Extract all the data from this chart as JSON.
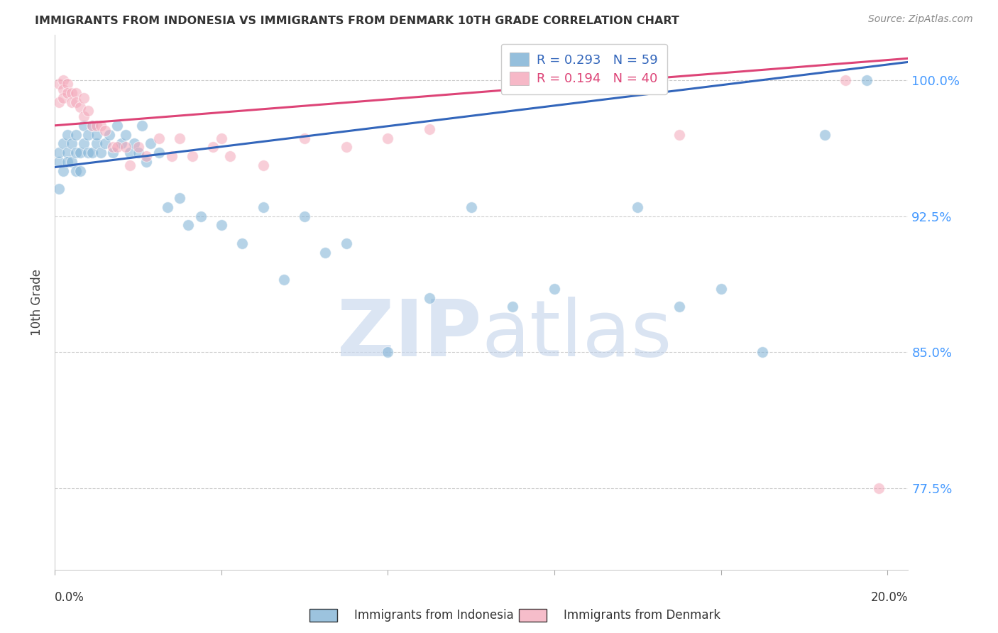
{
  "title": "IMMIGRANTS FROM INDONESIA VS IMMIGRANTS FROM DENMARK 10TH GRADE CORRELATION CHART",
  "source": "Source: ZipAtlas.com",
  "ylabel": "10th Grade",
  "yticks": [
    0.775,
    0.85,
    0.925,
    1.0
  ],
  "ytick_labels": [
    "77.5%",
    "85.0%",
    "92.5%",
    "100.0%"
  ],
  "xmin": 0.0,
  "xmax": 0.205,
  "ymin": 0.73,
  "ymax": 1.025,
  "indonesia_R": 0.293,
  "indonesia_N": 59,
  "denmark_R": 0.194,
  "denmark_N": 40,
  "indonesia_color": "#7BAFD4",
  "denmark_color": "#F4A7B9",
  "indonesia_line_color": "#3366BB",
  "denmark_line_color": "#DD4477",
  "indonesia_x": [
    0.001,
    0.001,
    0.001,
    0.002,
    0.002,
    0.003,
    0.003,
    0.003,
    0.004,
    0.004,
    0.005,
    0.005,
    0.005,
    0.006,
    0.006,
    0.007,
    0.007,
    0.008,
    0.008,
    0.009,
    0.009,
    0.01,
    0.01,
    0.011,
    0.012,
    0.013,
    0.014,
    0.015,
    0.016,
    0.017,
    0.018,
    0.019,
    0.02,
    0.021,
    0.022,
    0.023,
    0.025,
    0.027,
    0.03,
    0.032,
    0.035,
    0.04,
    0.045,
    0.05,
    0.055,
    0.06,
    0.065,
    0.07,
    0.08,
    0.09,
    0.1,
    0.11,
    0.12,
    0.14,
    0.15,
    0.16,
    0.17,
    0.185,
    0.195
  ],
  "indonesia_y": [
    0.955,
    0.94,
    0.96,
    0.95,
    0.965,
    0.96,
    0.955,
    0.97,
    0.955,
    0.965,
    0.96,
    0.95,
    0.97,
    0.96,
    0.95,
    0.965,
    0.975,
    0.96,
    0.97,
    0.96,
    0.975,
    0.965,
    0.97,
    0.96,
    0.965,
    0.97,
    0.96,
    0.975,
    0.965,
    0.97,
    0.96,
    0.965,
    0.96,
    0.975,
    0.955,
    0.965,
    0.96,
    0.93,
    0.935,
    0.92,
    0.925,
    0.92,
    0.91,
    0.93,
    0.89,
    0.925,
    0.905,
    0.91,
    0.85,
    0.88,
    0.93,
    0.875,
    0.885,
    0.93,
    0.875,
    0.885,
    0.85,
    0.97,
    1.0
  ],
  "denmark_x": [
    0.001,
    0.001,
    0.002,
    0.002,
    0.002,
    0.003,
    0.003,
    0.004,
    0.004,
    0.005,
    0.005,
    0.006,
    0.007,
    0.007,
    0.008,
    0.009,
    0.01,
    0.011,
    0.012,
    0.014,
    0.015,
    0.017,
    0.018,
    0.02,
    0.022,
    0.025,
    0.028,
    0.03,
    0.033,
    0.038,
    0.04,
    0.042,
    0.05,
    0.06,
    0.07,
    0.08,
    0.09,
    0.15,
    0.19,
    0.198
  ],
  "denmark_y": [
    0.998,
    0.988,
    1.0,
    0.995,
    0.99,
    0.998,
    0.993,
    0.993,
    0.988,
    0.993,
    0.988,
    0.985,
    0.99,
    0.98,
    0.983,
    0.975,
    0.975,
    0.975,
    0.972,
    0.963,
    0.963,
    0.963,
    0.953,
    0.963,
    0.958,
    0.968,
    0.958,
    0.968,
    0.958,
    0.963,
    0.968,
    0.958,
    0.953,
    0.968,
    0.963,
    0.968,
    0.973,
    0.97,
    1.0,
    0.775
  ],
  "background_color": "#FFFFFF",
  "grid_color": "#CCCCCC",
  "ytick_color": "#4499FF",
  "title_color": "#333333"
}
